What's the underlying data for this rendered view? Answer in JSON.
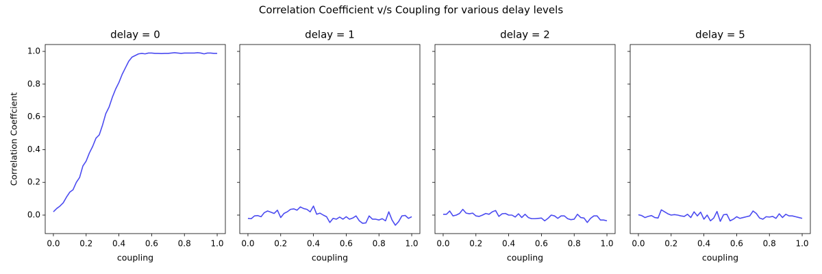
{
  "title": "Correlation Coefficient v/s Coupling for various delay levels",
  "chart_data": [
    {
      "type": "line",
      "title": "delay = 0",
      "xlabel": "coupling",
      "ylabel": "Correlation Coeffcient",
      "color": "#4a4af0",
      "x": [
        0,
        0.02,
        0.04,
        0.06,
        0.08,
        0.1,
        0.12,
        0.14,
        0.16,
        0.18,
        0.2,
        0.22,
        0.24,
        0.26,
        0.28,
        0.3,
        0.32,
        0.34,
        0.36,
        0.38,
        0.4,
        0.42,
        0.44,
        0.46,
        0.48,
        0.5,
        0.52,
        0.54,
        0.56,
        0.58,
        0.6,
        0.62,
        0.64,
        0.66,
        0.68,
        0.7,
        0.72,
        0.74,
        0.76,
        0.78,
        0.8,
        0.82,
        0.84,
        0.86,
        0.88,
        0.9,
        0.92,
        0.94,
        0.96,
        0.98,
        1.0
      ],
      "values": [
        0.02,
        0.04,
        0.055,
        0.075,
        0.11,
        0.14,
        0.155,
        0.2,
        0.23,
        0.3,
        0.33,
        0.38,
        0.42,
        0.47,
        0.49,
        0.55,
        0.62,
        0.66,
        0.72,
        0.77,
        0.81,
        0.86,
        0.9,
        0.94,
        0.965,
        0.975,
        0.985,
        0.988,
        0.985,
        0.99,
        0.99,
        0.988,
        0.988,
        0.987,
        0.988,
        0.988,
        0.99,
        0.992,
        0.99,
        0.988,
        0.99,
        0.99,
        0.99,
        0.99,
        0.992,
        0.99,
        0.985,
        0.99,
        0.99,
        0.988,
        0.988
      ],
      "xlim": [
        -0.05,
        1.05
      ],
      "ylim": [
        -0.113,
        1.042
      ],
      "xticks": [
        {
          "value": 0,
          "label": "0.0"
        },
        {
          "value": 0.2,
          "label": "0.2"
        },
        {
          "value": 0.4,
          "label": "0.4"
        },
        {
          "value": 0.6,
          "label": "0.6"
        },
        {
          "value": 0.8,
          "label": "0.8"
        },
        {
          "value": 1,
          "label": "1.0"
        }
      ],
      "yticks": [
        {
          "value": 0,
          "label": "0.0"
        },
        {
          "value": 0.2,
          "label": "0.2"
        },
        {
          "value": 0.4,
          "label": "0.4"
        },
        {
          "value": 0.6,
          "label": "0.6"
        },
        {
          "value": 0.8,
          "label": "0.8"
        },
        {
          "value": 1,
          "label": "1.0"
        }
      ]
    },
    {
      "type": "line",
      "title": "delay = 1",
      "xlabel": "coupling",
      "color": "#4a4af0",
      "x": [
        0,
        0.02,
        0.04,
        0.06,
        0.08,
        0.1,
        0.12,
        0.14,
        0.16,
        0.18,
        0.2,
        0.22,
        0.24,
        0.26,
        0.28,
        0.3,
        0.32,
        0.34,
        0.36,
        0.38,
        0.4,
        0.42,
        0.44,
        0.46,
        0.48,
        0.5,
        0.52,
        0.54,
        0.56,
        0.58,
        0.6,
        0.62,
        0.64,
        0.66,
        0.68,
        0.7,
        0.72,
        0.74,
        0.76,
        0.78,
        0.8,
        0.82,
        0.84,
        0.86,
        0.88,
        0.9,
        0.92,
        0.94,
        0.96,
        0.98,
        1.0
      ],
      "values": [
        -0.02,
        -0.022,
        -0.005,
        -0.003,
        -0.01,
        0.015,
        0.025,
        0.018,
        0.01,
        0.03,
        -0.015,
        0.01,
        0.02,
        0.035,
        0.038,
        0.03,
        0.05,
        0.04,
        0.035,
        0.02,
        0.055,
        0.005,
        0.012,
        0.0,
        -0.01,
        -0.045,
        -0.02,
        -0.025,
        -0.012,
        -0.025,
        -0.01,
        -0.025,
        -0.018,
        -0.005,
        -0.035,
        -0.05,
        -0.048,
        -0.005,
        -0.025,
        -0.025,
        -0.03,
        -0.022,
        -0.035,
        0.02,
        -0.03,
        -0.062,
        -0.04,
        -0.005,
        -0.002,
        -0.02,
        -0.01
      ],
      "xlim": [
        -0.05,
        1.05
      ],
      "ylim": [
        -0.113,
        1.042
      ],
      "xticks": [
        {
          "value": 0,
          "label": "0.0"
        },
        {
          "value": 0.2,
          "label": "0.2"
        },
        {
          "value": 0.4,
          "label": "0.4"
        },
        {
          "value": 0.6,
          "label": "0.6"
        },
        {
          "value": 0.8,
          "label": "0.8"
        },
        {
          "value": 1,
          "label": "1.0"
        }
      ],
      "yticks": [
        0,
        0.2,
        0.4,
        0.6,
        0.8,
        1
      ]
    },
    {
      "type": "line",
      "title": "delay = 2",
      "xlabel": "coupling",
      "color": "#4a4af0",
      "x": [
        0,
        0.02,
        0.04,
        0.06,
        0.08,
        0.1,
        0.12,
        0.14,
        0.16,
        0.18,
        0.2,
        0.22,
        0.24,
        0.26,
        0.28,
        0.3,
        0.32,
        0.34,
        0.36,
        0.38,
        0.4,
        0.42,
        0.44,
        0.46,
        0.48,
        0.5,
        0.52,
        0.54,
        0.56,
        0.58,
        0.6,
        0.62,
        0.64,
        0.66,
        0.68,
        0.7,
        0.72,
        0.74,
        0.76,
        0.78,
        0.8,
        0.82,
        0.84,
        0.86,
        0.88,
        0.9,
        0.92,
        0.94,
        0.96,
        0.98,
        1.0
      ],
      "values": [
        0.005,
        0.005,
        0.025,
        -0.005,
        0.0,
        0.01,
        0.035,
        0.012,
        0.008,
        0.012,
        -0.005,
        -0.008,
        0.0,
        0.01,
        0.005,
        0.02,
        0.028,
        -0.008,
        0.008,
        0.01,
        0.0,
        0.0,
        -0.012,
        0.008,
        -0.015,
        0.005,
        -0.015,
        -0.022,
        -0.022,
        -0.02,
        -0.018,
        -0.035,
        -0.02,
        0.0,
        -0.005,
        -0.02,
        -0.005,
        -0.005,
        -0.022,
        -0.028,
        -0.025,
        0.005,
        -0.015,
        -0.018,
        -0.045,
        -0.02,
        -0.005,
        -0.005,
        -0.03,
        -0.03,
        -0.035
      ],
      "xlim": [
        -0.05,
        1.05
      ],
      "ylim": [
        -0.113,
        1.042
      ],
      "xticks": [
        {
          "value": 0,
          "label": "0.0"
        },
        {
          "value": 0.2,
          "label": "0.2"
        },
        {
          "value": 0.4,
          "label": "0.4"
        },
        {
          "value": 0.6,
          "label": "0.6"
        },
        {
          "value": 0.8,
          "label": "0.8"
        },
        {
          "value": 1,
          "label": "1.0"
        }
      ],
      "yticks": [
        0,
        0.2,
        0.4,
        0.6,
        0.8,
        1
      ]
    },
    {
      "type": "line",
      "title": "delay = 5",
      "xlabel": "coupling",
      "color": "#4a4af0",
      "x": [
        0,
        0.02,
        0.04,
        0.06,
        0.08,
        0.1,
        0.12,
        0.14,
        0.16,
        0.18,
        0.2,
        0.22,
        0.24,
        0.26,
        0.28,
        0.3,
        0.32,
        0.34,
        0.36,
        0.38,
        0.4,
        0.42,
        0.44,
        0.46,
        0.48,
        0.5,
        0.52,
        0.54,
        0.56,
        0.58,
        0.6,
        0.62,
        0.64,
        0.66,
        0.68,
        0.7,
        0.72,
        0.74,
        0.76,
        0.78,
        0.8,
        0.82,
        0.84,
        0.86,
        0.88,
        0.9,
        0.92,
        0.94,
        0.96,
        0.98,
        1.0
      ],
      "values": [
        0.002,
        -0.003,
        -0.015,
        -0.008,
        -0.003,
        -0.015,
        -0.018,
        0.032,
        0.02,
        0.008,
        0.0,
        0.003,
        0.0,
        -0.005,
        -0.008,
        0.005,
        -0.015,
        0.02,
        -0.005,
        0.018,
        -0.025,
        0.0,
        -0.035,
        -0.018,
        0.022,
        -0.038,
        0.002,
        0.005,
        -0.035,
        -0.025,
        -0.01,
        -0.02,
        -0.015,
        -0.01,
        -0.005,
        0.025,
        0.01,
        -0.018,
        -0.025,
        -0.01,
        -0.012,
        -0.008,
        -0.02,
        0.008,
        -0.015,
        0.005,
        -0.005,
        -0.005,
        -0.01,
        -0.015,
        -0.02
      ],
      "xlim": [
        -0.05,
        1.05
      ],
      "ylim": [
        -0.113,
        1.042
      ],
      "xticks": [
        {
          "value": 0,
          "label": "0.0"
        },
        {
          "value": 0.2,
          "label": "0.2"
        },
        {
          "value": 0.4,
          "label": "0.4"
        },
        {
          "value": 0.6,
          "label": "0.6"
        },
        {
          "value": 0.8,
          "label": "0.8"
        },
        {
          "value": 1,
          "label": "1.0"
        }
      ],
      "yticks": [
        0,
        0.2,
        0.4,
        0.6,
        0.8,
        1
      ]
    }
  ]
}
